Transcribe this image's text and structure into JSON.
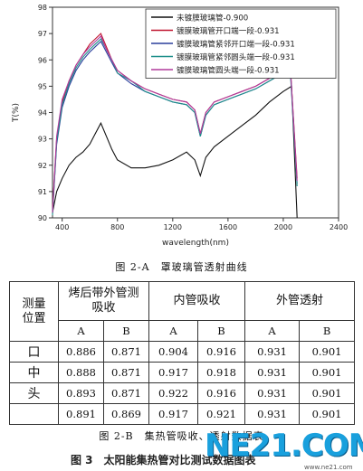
{
  "chart_data": {
    "type": "line",
    "xlabel": "wavelength(nm)",
    "ylabel": "T(%)",
    "xlim": [
      330,
      2400
    ],
    "ylim": [
      90,
      98
    ],
    "x_ticks": [
      400,
      800,
      1200,
      1600,
      2000,
      2400
    ],
    "y_ticks": [
      90,
      91,
      92,
      93,
      94,
      95,
      96,
      97,
      98
    ],
    "legend_position": "top-right",
    "series": [
      {
        "name": "未镀膜玻璃管-0.900",
        "color": "#111111",
        "x": [
          330,
          360,
          400,
          450,
          500,
          550,
          600,
          640,
          680,
          720,
          760,
          800,
          900,
          1000,
          1100,
          1200,
          1300,
          1360,
          1400,
          1440,
          1500,
          1600,
          1700,
          1800,
          1900,
          2000,
          2060,
          2100
        ],
        "y": [
          90.2,
          91.0,
          91.5,
          92.0,
          92.3,
          92.5,
          92.8,
          93.2,
          93.6,
          93.1,
          92.6,
          92.2,
          91.9,
          91.9,
          92.0,
          92.2,
          92.5,
          92.2,
          91.6,
          92.3,
          92.7,
          93.1,
          93.5,
          93.9,
          94.4,
          94.8,
          95.0,
          90.0
        ]
      },
      {
        "name": "镀膜玻璃管开口端一段-0.931",
        "color": "#c0142f",
        "x": [
          330,
          360,
          400,
          450,
          500,
          550,
          600,
          640,
          680,
          720,
          760,
          800,
          900,
          1000,
          1100,
          1200,
          1300,
          1360,
          1400,
          1440,
          1500,
          1600,
          1700,
          1800,
          1900,
          2000,
          2050,
          2100
        ],
        "y": [
          90.3,
          93.0,
          94.4,
          95.2,
          95.8,
          96.2,
          96.6,
          96.8,
          97.0,
          96.5,
          96.0,
          95.6,
          95.2,
          94.9,
          94.7,
          94.5,
          94.4,
          94.1,
          93.2,
          94.0,
          94.4,
          94.6,
          94.8,
          95.0,
          95.3,
          95.6,
          95.8,
          91.5
        ]
      },
      {
        "name": "镀膜玻璃管紧邻开口端一段-0.931",
        "color": "#2a3e9c",
        "x": [
          330,
          360,
          400,
          450,
          500,
          550,
          600,
          640,
          680,
          720,
          760,
          800,
          900,
          1000,
          1100,
          1200,
          1300,
          1360,
          1400,
          1440,
          1500,
          1600,
          1700,
          1800,
          1900,
          2000,
          2050,
          2100
        ],
        "y": [
          90.2,
          92.8,
          94.2,
          95.0,
          95.6,
          96.0,
          96.3,
          96.5,
          96.7,
          96.3,
          95.9,
          95.5,
          95.1,
          94.8,
          94.6,
          94.4,
          94.3,
          94.0,
          93.1,
          93.9,
          94.3,
          94.5,
          94.7,
          94.9,
          95.2,
          95.5,
          95.7,
          91.3
        ]
      },
      {
        "name": "镀膜玻璃管紧邻圆头端一段-0.931",
        "color": "#1e8f8a",
        "x": [
          330,
          360,
          400,
          450,
          500,
          550,
          600,
          640,
          680,
          720,
          760,
          800,
          900,
          1000,
          1100,
          1200,
          1300,
          1360,
          1400,
          1440,
          1500,
          1600,
          1700,
          1800,
          1900,
          2000,
          2050,
          2100
        ],
        "y": [
          90.1,
          92.9,
          94.3,
          95.1,
          95.7,
          96.1,
          96.4,
          96.6,
          96.8,
          96.4,
          96.0,
          95.5,
          95.2,
          94.8,
          94.6,
          94.4,
          94.3,
          94.0,
          93.1,
          93.9,
          94.3,
          94.5,
          94.7,
          94.9,
          95.2,
          95.5,
          95.6,
          91.2
        ]
      },
      {
        "name": "镀膜玻璃管圆头端一段-0.931",
        "color": "#b03a9c",
        "x": [
          330,
          360,
          400,
          450,
          500,
          550,
          600,
          640,
          680,
          720,
          760,
          800,
          900,
          1000,
          1100,
          1200,
          1300,
          1360,
          1400,
          1440,
          1500,
          1600,
          1700,
          1800,
          1900,
          2000,
          2050,
          2100
        ],
        "y": [
          90.2,
          93.1,
          94.5,
          95.2,
          95.8,
          96.2,
          96.5,
          96.7,
          96.9,
          96.4,
          96.0,
          95.6,
          95.2,
          94.9,
          94.7,
          94.5,
          94.4,
          94.1,
          93.2,
          94.0,
          94.4,
          94.6,
          94.8,
          95.0,
          95.3,
          95.6,
          95.8,
          91.4
        ]
      }
    ]
  },
  "caption_a": "图 2-A　罩玻璃管透射曲线",
  "table": {
    "header_groups": [
      "测量\n位置",
      "烤后带外管测\n吸收",
      "内管吸收",
      "外管透射"
    ],
    "sub_headers": [
      "A",
      "B",
      "A",
      "B",
      "A",
      "B"
    ],
    "rows": [
      {
        "label": "口",
        "values": [
          "0.886",
          "0.871",
          "0.904",
          "0.916",
          "0.931",
          "0.901"
        ]
      },
      {
        "label": "中",
        "values": [
          "0.888",
          "0.871",
          "0.917",
          "0.918",
          "0.931",
          "0.901"
        ]
      },
      {
        "label": "头",
        "values": [
          "0.893",
          "0.871",
          "0.922",
          "0.916",
          "0.931",
          "0.901"
        ]
      },
      {
        "label": "",
        "values": [
          "0.891",
          "0.869",
          "0.917",
          "0.921",
          "0.931",
          "0.901"
        ]
      }
    ]
  },
  "caption_b": "图 2-B　集热管吸收、透射数据表",
  "footer": {
    "title": "图 3　太阳能集热管对比测试数据图表",
    "logo_text": "NE21.COM",
    "logo_site": "www.ne21.com"
  }
}
